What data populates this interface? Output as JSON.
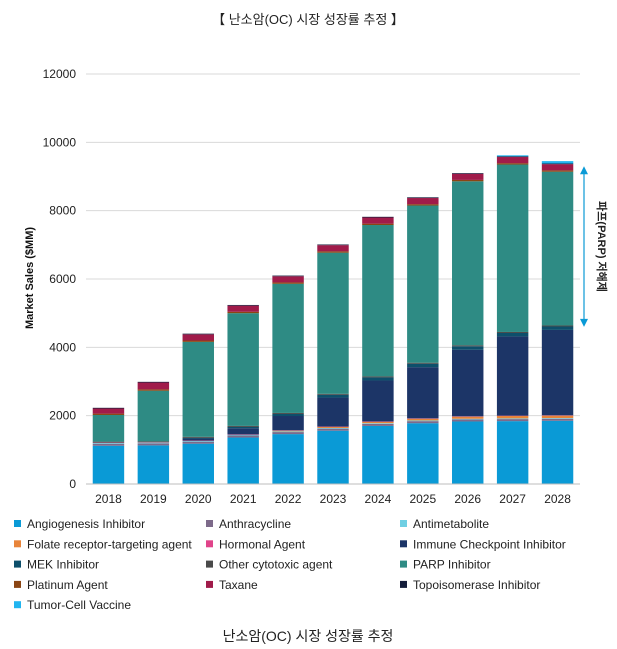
{
  "header": {
    "top_title": "【 난소암(OC) 시장 성장률 추정 】",
    "caption": "난소암(OC) 시장 성장률 추정"
  },
  "chart_data": {
    "type": "bar",
    "stacked": true,
    "ylabel": "Market Sales ($MM)",
    "ylim": [
      0,
      12000
    ],
    "yticks": [
      0,
      2000,
      4000,
      6000,
      8000,
      10000,
      12000
    ],
    "ytick_labels": [
      "0",
      "2000",
      "4000",
      "6000",
      "8000",
      "10000",
      "12000"
    ],
    "categories": [
      "2018",
      "2019",
      "2020",
      "2021",
      "2022",
      "2023",
      "2024",
      "2025",
      "2026",
      "2027",
      "2028"
    ],
    "legend_position": "bottom",
    "series": [
      {
        "name": "Angiogenesis Inhibitor",
        "color": "#0a9ad6",
        "values": [
          1120,
          1130,
          1180,
          1360,
          1460,
          1560,
          1700,
          1780,
          1830,
          1840,
          1850
        ]
      },
      {
        "name": "Anthracycline",
        "color": "#7d6a8a",
        "values": [
          60,
          60,
          60,
          60,
          60,
          60,
          60,
          60,
          60,
          60,
          60
        ]
      },
      {
        "name": "Antimetabolite",
        "color": "#6fcfe3",
        "values": [
          20,
          20,
          20,
          20,
          20,
          20,
          20,
          20,
          20,
          20,
          20
        ]
      },
      {
        "name": "Folate receptor-targeting agent",
        "color": "#e8843a",
        "values": [
          0,
          0,
          0,
          0,
          20,
          30,
          40,
          50,
          60,
          70,
          70
        ]
      },
      {
        "name": "Hormonal Agent",
        "color": "#e0448a",
        "values": [
          10,
          10,
          10,
          10,
          10,
          10,
          10,
          10,
          10,
          10,
          10
        ]
      },
      {
        "name": "Immune Checkpoint Inhibitor",
        "color": "#1c3567",
        "values": [
          0,
          0,
          60,
          180,
          420,
          850,
          1200,
          1500,
          1950,
          2320,
          2500
        ]
      },
      {
        "name": "MEK Inhibitor",
        "color": "#0d4f6b",
        "values": [
          0,
          0,
          20,
          40,
          60,
          80,
          90,
          100,
          100,
          100,
          100
        ]
      },
      {
        "name": "Other cytotoxic agent",
        "color": "#4a4a4a",
        "values": [
          30,
          30,
          30,
          30,
          30,
          30,
          30,
          30,
          30,
          30,
          30
        ]
      },
      {
        "name": "PARP Inhibitor",
        "color": "#2e8b84",
        "values": [
          780,
          1480,
          2780,
          3300,
          3780,
          4130,
          4430,
          4600,
          4800,
          4900,
          4500
        ]
      },
      {
        "name": "Platinum Agent",
        "color": "#8b4513",
        "values": [
          40,
          40,
          40,
          40,
          40,
          40,
          40,
          40,
          40,
          40,
          40
        ]
      },
      {
        "name": "Taxane",
        "color": "#a01b4a",
        "values": [
          150,
          200,
          180,
          180,
          180,
          180,
          180,
          180,
          180,
          180,
          180
        ]
      },
      {
        "name": "Topoisomerase Inhibitor",
        "color": "#141d3a",
        "values": [
          20,
          20,
          20,
          20,
          20,
          20,
          20,
          20,
          20,
          20,
          20
        ]
      },
      {
        "name": "Tumor-Cell Vaccine",
        "color": "#21b5f0",
        "values": [
          0,
          0,
          0,
          0,
          0,
          0,
          0,
          0,
          0,
          30,
          70
        ]
      }
    ],
    "annotation": {
      "text": "파프(PARP) 저해제",
      "color": "#0a9ad6",
      "from": 4600,
      "to": 9300
    }
  }
}
